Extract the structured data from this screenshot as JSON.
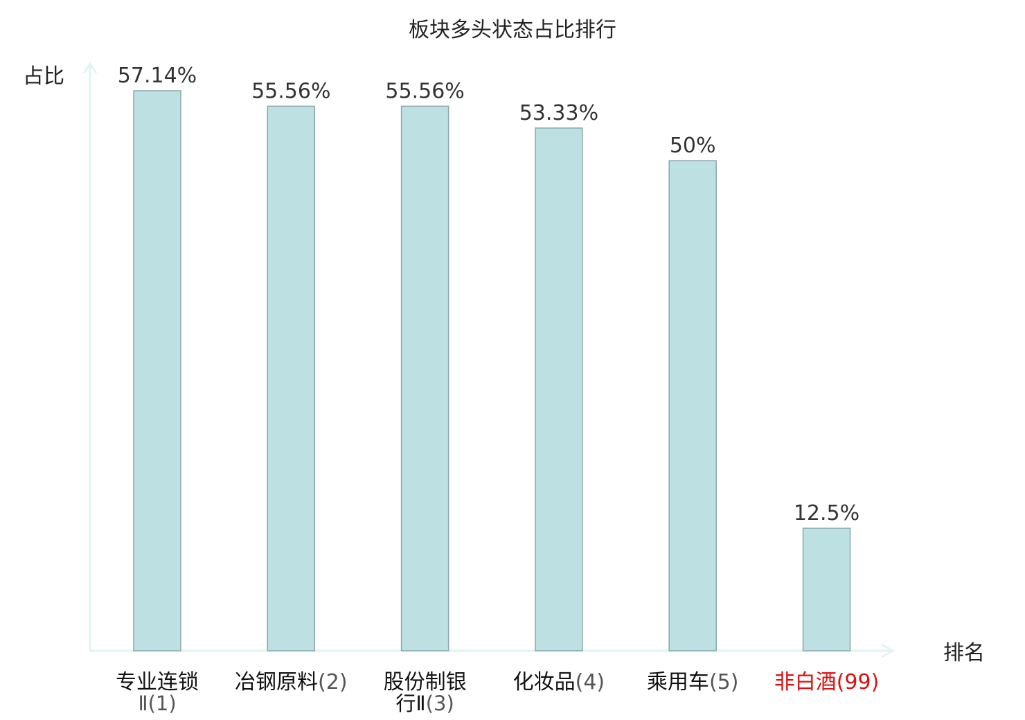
{
  "chart_data": {
    "type": "bar",
    "title": "板块多头状态占比排行",
    "ylabel": "占比",
    "xlabel": "排名",
    "ylim": [
      0,
      60
    ],
    "categories": [
      {
        "name_lines": [
          "专业连锁"
        ],
        "rank_prefix": "Ⅱ",
        "rank": "(1)",
        "highlight": false
      },
      {
        "name_lines": [
          "冶钢原料"
        ],
        "rank_prefix": "",
        "rank": "(2)",
        "highlight": false
      },
      {
        "name_lines": [
          "股份制银"
        ],
        "rank_prefix": "行Ⅱ",
        "rank": "(3)",
        "highlight": false
      },
      {
        "name_lines": [
          "化妆品"
        ],
        "rank_prefix": "",
        "rank": "(4)",
        "highlight": false
      },
      {
        "name_lines": [
          "乘用车"
        ],
        "rank_prefix": "",
        "rank": "(5)",
        "highlight": false
      },
      {
        "name_lines": [
          "非白酒"
        ],
        "rank_prefix": "",
        "rank": "(99)",
        "highlight": true
      }
    ],
    "values": [
      57.14,
      55.56,
      55.56,
      53.33,
      50,
      12.5
    ],
    "value_labels": [
      "57.14%",
      "55.56%",
      "55.56%",
      "53.33%",
      "50%",
      "12.5%"
    ],
    "colors": {
      "bar_fill": "#bde0e3",
      "bar_stroke": "#8aa8aa",
      "axis": "#e2f3f1",
      "highlight_text": "#e01010",
      "name_text": "#111111",
      "rank_text": "#555555"
    },
    "grid": false
  }
}
